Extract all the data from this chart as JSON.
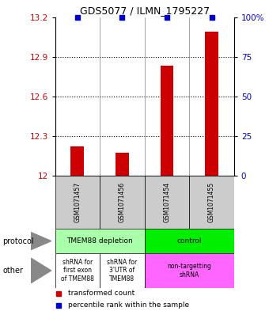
{
  "title": "GDS5077 / ILMN_1795227",
  "samples": [
    "GSM1071457",
    "GSM1071456",
    "GSM1071454",
    "GSM1071455"
  ],
  "red_values": [
    12.22,
    12.175,
    12.83,
    13.09
  ],
  "blue_values": [
    100,
    100,
    100,
    100
  ],
  "ylim_left": [
    12.0,
    13.2
  ],
  "ylim_right": [
    0,
    100
  ],
  "yticks_left": [
    12.0,
    12.3,
    12.6,
    12.9,
    13.2
  ],
  "ytick_labels_left": [
    "12",
    "12.3",
    "12.6",
    "12.9",
    "13.2"
  ],
  "yticks_right": [
    0,
    25,
    50,
    75,
    100
  ],
  "ytick_labels_right": [
    "0",
    "25",
    "50",
    "75",
    "100%"
  ],
  "grid_values": [
    12.3,
    12.6,
    12.9
  ],
  "protocol_labels": [
    "TMEM88 depletion",
    "control"
  ],
  "protocol_colors": [
    "#aaffaa",
    "#00ee00"
  ],
  "other_labels": [
    "shRNA for\nfirst exon\nof TMEM88",
    "shRNA for\n3'UTR of\nTMEM88",
    "non-targetting\nshRNA"
  ],
  "other_colors": [
    "#ffffff",
    "#ffffff",
    "#ff66ff"
  ],
  "legend_red": "transformed count",
  "legend_blue": "percentile rank within the sample",
  "red_color": "#cc0000",
  "blue_color": "#0000cc",
  "sample_bg": "#cccccc",
  "bar_width": 0.3
}
